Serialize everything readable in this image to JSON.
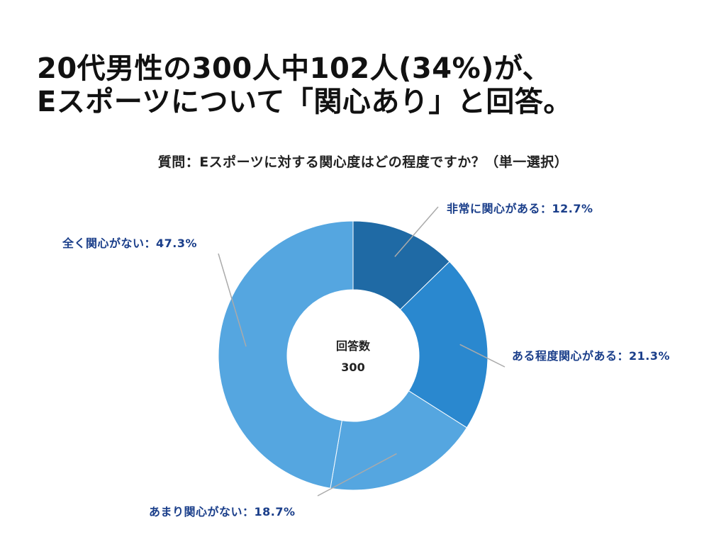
{
  "headline": {
    "line1": "20代男性の300人中102人(34%)が、",
    "line2": "Eスポーツについて「関心あり」と回答。"
  },
  "question": "質問：Eスポーツに対する関心度はどの程度ですか？（単一選択）",
  "colors": {
    "label_text": "#1a3e8a",
    "leader_line": "#aaaaaa",
    "slice_border": "#ffffff"
  },
  "chart_data": {
    "type": "pie",
    "variant": "donut",
    "title": "質問：Eスポーツに対する関心度はどの程度ですか？（単一選択）",
    "center_label": "回答数",
    "center_value": "300",
    "total": 300,
    "start": "12 o'clock, clockwise",
    "slices": [
      {
        "name": "非常に関心がある",
        "value": 12.7,
        "label": "非常に関心がある：12.7%",
        "color": "#1f6aa5"
      },
      {
        "name": "ある程度関心がある",
        "value": 21.3,
        "label": "ある程度関心がある：21.3%",
        "color": "#2a88cf"
      },
      {
        "name": "あまり関心がない",
        "value": 18.7,
        "label": "あまり関心がない：18.7%",
        "color": "#55a6e0"
      },
      {
        "name": "全く関心がない",
        "value": 47.3,
        "label": "全く関心がない：47.3%",
        "color": "#55a6e0"
      }
    ]
  }
}
